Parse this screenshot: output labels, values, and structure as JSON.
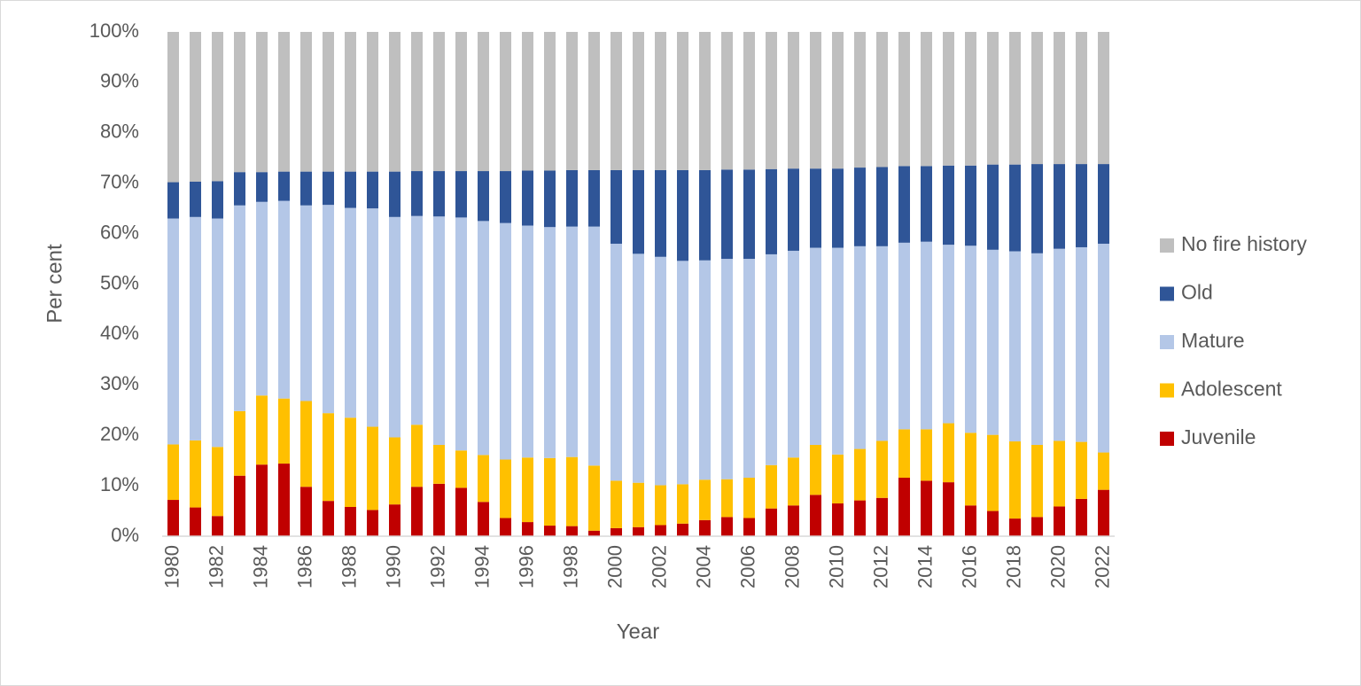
{
  "chart_data": {
    "type": "stacked_bar",
    "x_label": "Year",
    "y_label": "Per cent",
    "categories": [
      "1980",
      null,
      "1982",
      null,
      "1984",
      null,
      "1986",
      null,
      "1988",
      null,
      "1990",
      null,
      "1992",
      null,
      "1994",
      null,
      "1996",
      null,
      "1998",
      null,
      "2000",
      null,
      "2002",
      null,
      "2004",
      null,
      "2006",
      null,
      "2008",
      null,
      "2010",
      null,
      "2012",
      null,
      "2014",
      null,
      "2016",
      null,
      "2018",
      null,
      "2020",
      null,
      "2022"
    ],
    "series": [
      {
        "name": "Juvenile",
        "color": "#c00000",
        "values": [
          7.2,
          5.7,
          4.0,
          12.0,
          14.2,
          14.4,
          9.8,
          7.0,
          5.8,
          5.2,
          6.3,
          9.8,
          10.4,
          9.6,
          6.8,
          3.6,
          2.8,
          2.1,
          2.0,
          1.1,
          1.6,
          1.8,
          2.2,
          2.5,
          3.2,
          3.8,
          3.6,
          5.5,
          6.1,
          8.2,
          6.5,
          7.1,
          7.6,
          11.6,
          11.0,
          10.7,
          6.1,
          5.0,
          3.5,
          3.8,
          5.9,
          7.4,
          9.2
        ]
      },
      {
        "name": "Adolescent",
        "color": "#ffc000",
        "values": [
          11.0,
          13.3,
          13.7,
          12.8,
          13.7,
          12.9,
          17.0,
          17.4,
          17.7,
          16.5,
          13.3,
          12.3,
          7.7,
          7.4,
          9.3,
          11.6,
          12.8,
          13.4,
          13.7,
          12.9,
          9.4,
          8.8,
          7.9,
          7.8,
          8.0,
          7.5,
          8.0,
          8.6,
          9.5,
          9.9,
          9.7,
          10.2,
          11.3,
          9.6,
          10.2,
          11.7,
          14.4,
          15.1,
          15.3,
          14.3,
          13.0,
          11.3,
          7.4
        ]
      },
      {
        "name": "Mature",
        "color": "#b4c7e7",
        "values": [
          44.8,
          44.3,
          45.3,
          40.8,
          38.4,
          39.2,
          38.8,
          41.3,
          41.6,
          43.3,
          43.7,
          41.4,
          45.3,
          46.2,
          46.4,
          46.9,
          46.0,
          45.8,
          45.7,
          47.4,
          47.0,
          45.4,
          45.3,
          44.3,
          43.5,
          43.7,
          43.4,
          41.8,
          41.0,
          39.1,
          41.0,
          40.2,
          38.6,
          37.0,
          37.2,
          35.4,
          37.1,
          36.7,
          37.7,
          38.0,
          38.1,
          38.6,
          41.4
        ]
      },
      {
        "name": "Old",
        "color": "#2f5597",
        "values": [
          7.2,
          7.0,
          7.4,
          6.6,
          5.9,
          5.8,
          6.7,
          6.6,
          7.2,
          7.3,
          9.0,
          8.9,
          9.0,
          9.2,
          9.9,
          10.3,
          10.9,
          11.2,
          11.2,
          11.2,
          14.6,
          16.6,
          17.2,
          18.0,
          17.9,
          17.7,
          17.7,
          16.9,
          16.3,
          15.7,
          15.7,
          15.6,
          15.7,
          15.2,
          15.0,
          15.7,
          15.9,
          16.9,
          17.2,
          17.7,
          16.8,
          16.5,
          15.8
        ]
      },
      {
        "name": "No fire history",
        "color": "#bfbfbf",
        "values": [
          29.8,
          29.7,
          29.6,
          27.8,
          27.8,
          27.7,
          27.7,
          27.7,
          27.7,
          27.7,
          27.7,
          27.6,
          27.6,
          27.6,
          27.6,
          27.6,
          27.5,
          27.5,
          27.4,
          27.4,
          27.4,
          27.4,
          27.4,
          27.4,
          27.4,
          27.3,
          27.3,
          27.2,
          27.1,
          27.1,
          27.1,
          26.9,
          26.8,
          26.6,
          26.6,
          26.5,
          26.5,
          26.3,
          26.3,
          26.2,
          26.2,
          26.2,
          26.2
        ]
      }
    ],
    "ylim": [
      0,
      100
    ],
    "yticks": [
      {
        "value": 0,
        "label": "0%"
      },
      {
        "value": 10,
        "label": "10%"
      },
      {
        "value": 20,
        "label": "20%"
      },
      {
        "value": 30,
        "label": "30%"
      },
      {
        "value": 40,
        "label": "40%"
      },
      {
        "value": 50,
        "label": "50%"
      },
      {
        "value": 60,
        "label": "60%"
      },
      {
        "value": 70,
        "label": "70%"
      },
      {
        "value": 80,
        "label": "80%"
      },
      {
        "value": 90,
        "label": "90%"
      },
      {
        "value": 100,
        "label": "100%"
      }
    ],
    "grid": false,
    "legend": "right"
  }
}
